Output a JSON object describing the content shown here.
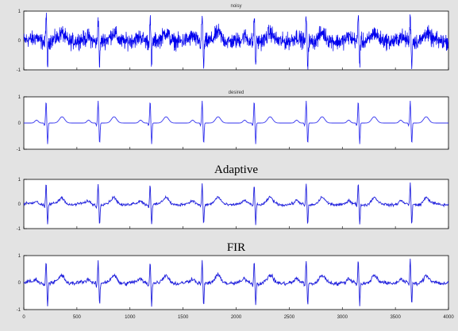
{
  "chart_data": [
    {
      "type": "line",
      "title": "noisy",
      "xlim": [
        0,
        4000
      ],
      "ylim": [
        -1,
        1
      ],
      "yticks": [
        "1",
        "0",
        "-1"
      ],
      "color": "#0000ee",
      "signal": "ecg_noisy",
      "beats_x": [
        210,
        700,
        1190,
        1680,
        2170,
        2660,
        3150,
        3640
      ],
      "noise_level": 0.3
    },
    {
      "type": "line",
      "title": "desired",
      "xlim": [
        0,
        4000
      ],
      "ylim": [
        -1,
        1
      ],
      "yticks": [
        "1",
        "0",
        "-1"
      ],
      "color": "#3333ee",
      "signal": "ecg_clean",
      "beats_x": [
        210,
        700,
        1190,
        1680,
        2170,
        2660,
        3150,
        3640
      ],
      "noise_level": 0.0
    },
    {
      "type": "line",
      "title": "Adaptive",
      "xlim": [
        0,
        4000
      ],
      "ylim": [
        -1,
        1
      ],
      "yticks": [
        "1",
        "0",
        "-1"
      ],
      "color": "#2222dd",
      "signal": "ecg_filtered",
      "beats_x": [
        210,
        700,
        1190,
        1680,
        2170,
        2660,
        3150,
        3640
      ],
      "noise_level": 0.06
    },
    {
      "type": "line",
      "title": "FIR",
      "xlim": [
        0,
        4000
      ],
      "ylim": [
        -1,
        1
      ],
      "yticks": [
        "1",
        "0",
        "-1"
      ],
      "xticks": [
        "0",
        "500",
        "1000",
        "1500",
        "2000",
        "2500",
        "3000",
        "3500",
        "4000"
      ],
      "color": "#2222dd",
      "signal": "ecg_filtered",
      "beats_x": [
        210,
        700,
        1190,
        1680,
        2170,
        2660,
        3150,
        3640
      ],
      "noise_level": 0.08
    }
  ]
}
